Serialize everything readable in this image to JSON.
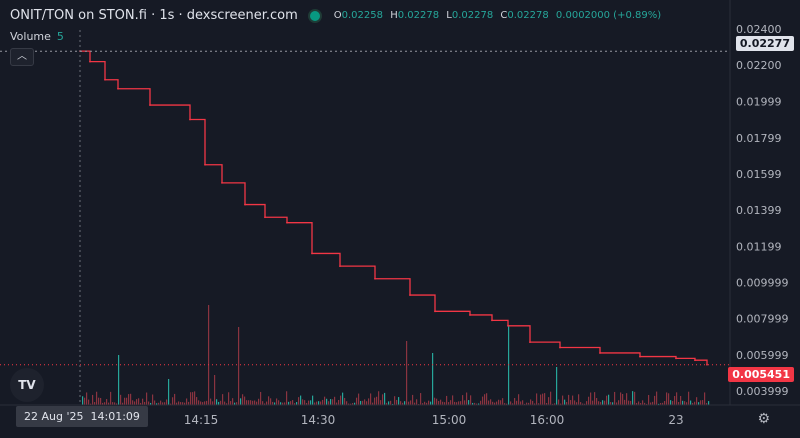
{
  "header": {
    "title": "ONIT/TON on STON.fi · 1s · dexscreener.com",
    "ohlc": [
      {
        "k": "O",
        "v": "0.02258"
      },
      {
        "k": "H",
        "v": "0.02278"
      },
      {
        "k": "L",
        "v": "0.02278"
      },
      {
        "k": "C",
        "v": "0.02278"
      }
    ],
    "change": "0.0002000 (+0.89%)"
  },
  "volume_legend": {
    "label": "Volume",
    "value": "5"
  },
  "collapse_icon": "chevron-up-icon",
  "logo_text": "TV",
  "crosshair": {
    "date": "22 Aug '25",
    "time": "14:01:09"
  },
  "price_badges": {
    "current": "0.02277",
    "last": "0.005451"
  },
  "colors": {
    "background": "#161a25",
    "line": "#f23645",
    "up_volume": "#26a69a",
    "down_volume": "#8a3440",
    "badge_last": "#f23645"
  },
  "chart_data": {
    "type": "line",
    "y_axis_ticks": [
      "0.02400",
      "0.02200",
      "0.01999",
      "0.01799",
      "0.01599",
      "0.01399",
      "0.01199",
      "0.009999",
      "0.007999",
      "0.005999",
      "0.003999"
    ],
    "x_axis_ticks": [
      "14:15",
      "14:30",
      "15:00",
      "16:00",
      "23"
    ],
    "ylim": [
      0.0035,
      0.0245
    ],
    "x": [
      "22 Aug '25 14:01",
      "14:03",
      "14:08",
      "14:12",
      "14:15",
      "14:17",
      "14:20",
      "14:23",
      "14:27",
      "14:31",
      "14:34",
      "14:40",
      "14:49",
      "14:56",
      "15:03",
      "15:14",
      "15:30",
      "15:40",
      "15:55",
      "16:10",
      "16:35",
      "17:10",
      "18:00",
      "20:00",
      "23:00",
      "23:30"
    ],
    "series": [
      {
        "values": [
          0.02278,
          0.0222,
          0.0212,
          0.0207,
          0.0198,
          0.019,
          0.0165,
          0.0155,
          0.0143,
          0.0136,
          0.0133,
          0.0116,
          0.0109,
          0.0102,
          0.0093,
          0.0084,
          0.0082,
          0.0079,
          0.0076,
          0.0067,
          0.0064,
          0.0061,
          0.0059,
          0.0058,
          0.0057,
          0.005451
        ]
      }
    ]
  }
}
